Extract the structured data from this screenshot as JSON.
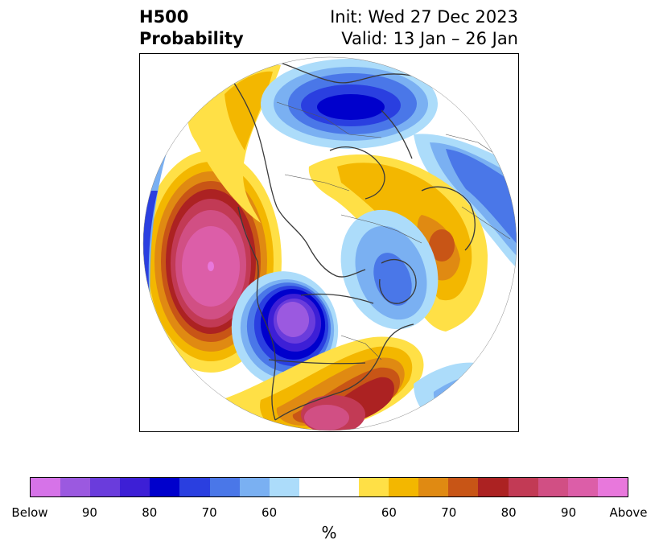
{
  "title": {
    "line1": "H500",
    "line2": "Probability"
  },
  "info": {
    "init": "Init: Wed 27 Dec 2023",
    "valid": "Valid: 13 Jan – 26 Jan"
  },
  "colorbar": {
    "unit": "%",
    "colors": [
      "#d673e8",
      "#9b59e0",
      "#6a3cdc",
      "#3d1fd6",
      "#0000cc",
      "#2a3fe0",
      "#4a77e8",
      "#7ab0f2",
      "#acdcfa",
      "#ffffff",
      "#ffffff",
      "#ffe046",
      "#f3b700",
      "#e08a12",
      "#c85516",
      "#ac2222",
      "#c23a55",
      "#d14f84",
      "#dc5ea8",
      "#e878dc"
    ],
    "tick_labels": [
      {
        "label": "Below"
      },
      {
        "label": "90"
      },
      {
        "label": "80"
      },
      {
        "label": "70"
      },
      {
        "label": "60"
      },
      {
        "label": "60"
      },
      {
        "label": "70"
      },
      {
        "label": "80"
      },
      {
        "label": "90"
      },
      {
        "label": "Above"
      }
    ]
  }
}
